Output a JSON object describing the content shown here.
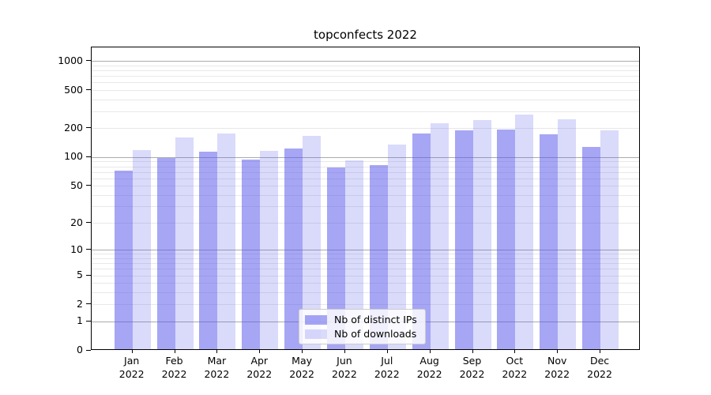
{
  "title": "topconfects 2022",
  "chart_data": {
    "type": "bar",
    "title": "topconfects 2022",
    "yscale": "log1p",
    "ylim": [
      0,
      1400
    ],
    "yticks": [
      0,
      1,
      2,
      5,
      10,
      20,
      50,
      100,
      200,
      500,
      1000
    ],
    "grid_major": [
      1,
      10,
      100,
      1000
    ],
    "grid_minor_subs": [
      2,
      3,
      4,
      5,
      6,
      7,
      8,
      9
    ],
    "grid": true,
    "legend_position": "lower center",
    "categories": [
      "Jan",
      "Feb",
      "Mar",
      "Apr",
      "May",
      "Jun",
      "Jul",
      "Aug",
      "Sep",
      "Oct",
      "Nov",
      "Dec"
    ],
    "category_year": "2022",
    "series": [
      {
        "name": "Nb of distinct IPs",
        "base_color": "#5555eb",
        "alpha": 0.52,
        "values": [
          72,
          97,
          112,
          93,
          123,
          77,
          82,
          174,
          188,
          192,
          171,
          126
        ]
      },
      {
        "name": "Nb of downloads",
        "base_color": "#5555eb",
        "alpha": 0.22,
        "values": [
          118,
          158,
          176,
          115,
          166,
          91,
          135,
          225,
          242,
          278,
          246,
          190
        ]
      }
    ]
  },
  "colors": {
    "bar_distinct_ips": "#a8a8f3",
    "bar_downloads": "#dadaf9",
    "grid_major": "#ababab",
    "grid_minor": "#e8e8e8",
    "axis": "#000000",
    "legend_border": "#cccccc"
  }
}
